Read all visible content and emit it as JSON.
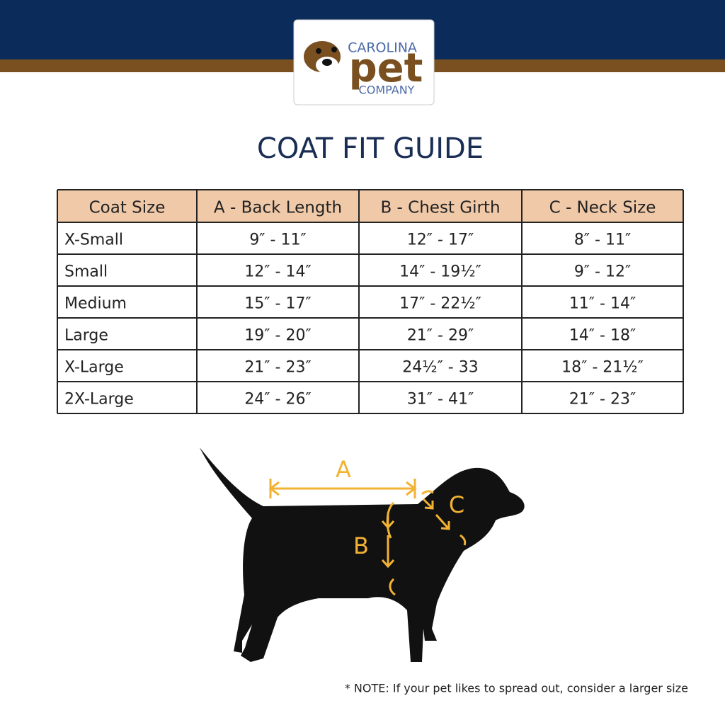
{
  "logo": {
    "line1": "CAROLINA",
    "line2": "pet",
    "line3": "COMPANY"
  },
  "title": "COAT FIT GUIDE",
  "table": {
    "header": [
      "Coat Size",
      "A - Back Length",
      "B - Chest Girth",
      "C - Neck Size"
    ],
    "rows": [
      [
        "X-Small",
        "9″ - 11″",
        "12″ - 17″",
        "8″ - 11″"
      ],
      [
        "Small",
        "12″ - 14″",
        "14″ - 19½″",
        "9″ - 12″"
      ],
      [
        "Medium",
        "15″ - 17″",
        "17″ - 22½″",
        "11″ - 14″"
      ],
      [
        "Large",
        "19″ - 20″",
        "21″ - 29″",
        "14″ - 18″"
      ],
      [
        "X-Large",
        "21″ - 23″",
        "24½″ - 33",
        "18″ - 21½″"
      ],
      [
        "2X-Large",
        "24″ - 26″",
        "31″ - 41″",
        "21″ - 23″"
      ]
    ]
  },
  "diagram": {
    "a": "A",
    "b": "B",
    "c": "C"
  },
  "note": "* NOTE: If your pet likes to spread out, consider a larger size"
}
